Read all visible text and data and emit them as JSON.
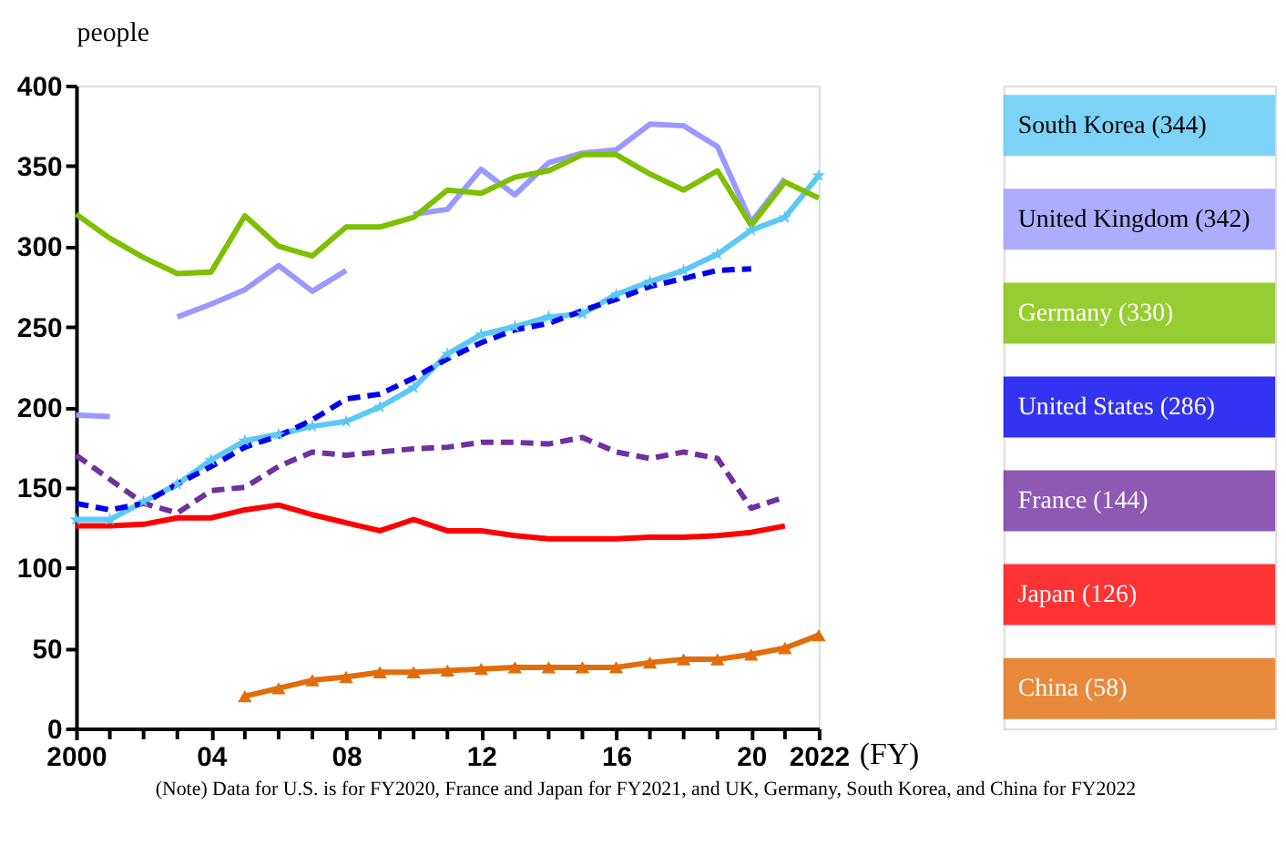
{
  "chart_data": {
    "type": "line",
    "ylabel": "people",
    "xlabel": "(FY)",
    "x": [
      2000,
      2001,
      2002,
      2003,
      2004,
      2005,
      2006,
      2007,
      2008,
      2009,
      2010,
      2011,
      2012,
      2013,
      2014,
      2015,
      2016,
      2017,
      2018,
      2019,
      2020,
      2021,
      2022
    ],
    "xlim": [
      2000,
      2022
    ],
    "xticks": [
      {
        "value": 2000,
        "label": "2000"
      },
      {
        "value": 2001,
        "label": null
      },
      {
        "value": 2002,
        "label": null
      },
      {
        "value": 2003,
        "label": null
      },
      {
        "value": 2004,
        "label": "04"
      },
      {
        "value": 2005,
        "label": null
      },
      {
        "value": 2006,
        "label": null
      },
      {
        "value": 2007,
        "label": null
      },
      {
        "value": 2008,
        "label": "08"
      },
      {
        "value": 2009,
        "label": null
      },
      {
        "value": 2010,
        "label": null
      },
      {
        "value": 2011,
        "label": null
      },
      {
        "value": 2012,
        "label": "12"
      },
      {
        "value": 2013,
        "label": null
      },
      {
        "value": 2014,
        "label": null
      },
      {
        "value": 2015,
        "label": null
      },
      {
        "value": 2016,
        "label": "16"
      },
      {
        "value": 2017,
        "label": null
      },
      {
        "value": 2018,
        "label": null
      },
      {
        "value": 2019,
        "label": null
      },
      {
        "value": 2020,
        "label": "20"
      },
      {
        "value": 2021,
        "label": null
      },
      {
        "value": 2022,
        "label": "2022"
      }
    ],
    "ylim": [
      0,
      400
    ],
    "yticks": [
      0,
      50,
      100,
      150,
      200,
      250,
      300,
      350,
      400
    ],
    "grid": false,
    "legend": "right",
    "series": [
      {
        "name": "South Korea (344)",
        "color": "#5bc8f5",
        "marker": "star",
        "line_style": "solid",
        "values": [
          130,
          130,
          141,
          152,
          167,
          179,
          183,
          188,
          191,
          200,
          212,
          233,
          245,
          250,
          256,
          258,
          270,
          278,
          285,
          295,
          310,
          318,
          344
        ]
      },
      {
        "name": "United Kingdom (342)",
        "color": "#9999ff",
        "marker": "none",
        "line_style": "solid",
        "values": [
          195,
          194,
          null,
          256,
          264,
          273,
          288,
          272,
          285,
          null,
          320,
          323,
          348,
          332,
          352,
          358,
          360,
          376,
          375,
          362,
          315,
          342,
          null
        ]
      },
      {
        "name": "Germany (330)",
        "color": "#7cc000",
        "marker": "none",
        "line_style": "solid",
        "values": [
          320,
          305,
          293,
          283,
          284,
          319,
          300,
          294,
          312,
          312,
          318,
          335,
          333,
          343,
          347,
          357,
          357,
          345,
          335,
          347,
          313,
          340,
          330
        ]
      },
      {
        "name": "United States (286)",
        "color": "#0000ee",
        "marker": "none",
        "line_style": "dashed",
        "values": [
          140,
          136,
          140,
          152,
          163,
          175,
          182,
          192,
          205,
          208,
          218,
          230,
          240,
          248,
          252,
          260,
          267,
          275,
          280,
          285,
          286,
          null,
          null
        ]
      },
      {
        "name": "France (144)",
        "color": "#7030a0",
        "marker": "none",
        "line_style": "dashed",
        "values": [
          170,
          155,
          140,
          134,
          148,
          150,
          163,
          172,
          170,
          172,
          174,
          175,
          178,
          178,
          177,
          181,
          172,
          168,
          172,
          168,
          137,
          144,
          null
        ]
      },
      {
        "name": "Japan (126)",
        "color": "#ff0000",
        "marker": "none",
        "line_style": "solid",
        "values": [
          126,
          126,
          127,
          131,
          131,
          136,
          139,
          133,
          128,
          123,
          130,
          123,
          123,
          120,
          118,
          118,
          118,
          119,
          119,
          120,
          122,
          126,
          null
        ]
      },
      {
        "name": "China (58)",
        "color": "#e36c0a",
        "marker": "triangle",
        "line_style": "solid",
        "values": [
          null,
          null,
          null,
          null,
          null,
          20,
          25,
          30,
          32,
          35,
          35,
          36,
          37,
          38,
          38,
          38,
          38,
          41,
          43,
          43,
          46,
          50,
          58
        ]
      }
    ],
    "annotations": [
      "(Note) Data for U.S. is for FY2020, France and Japan for FY2021, and UK, Germany, South Korea, and China for FY2022"
    ]
  }
}
